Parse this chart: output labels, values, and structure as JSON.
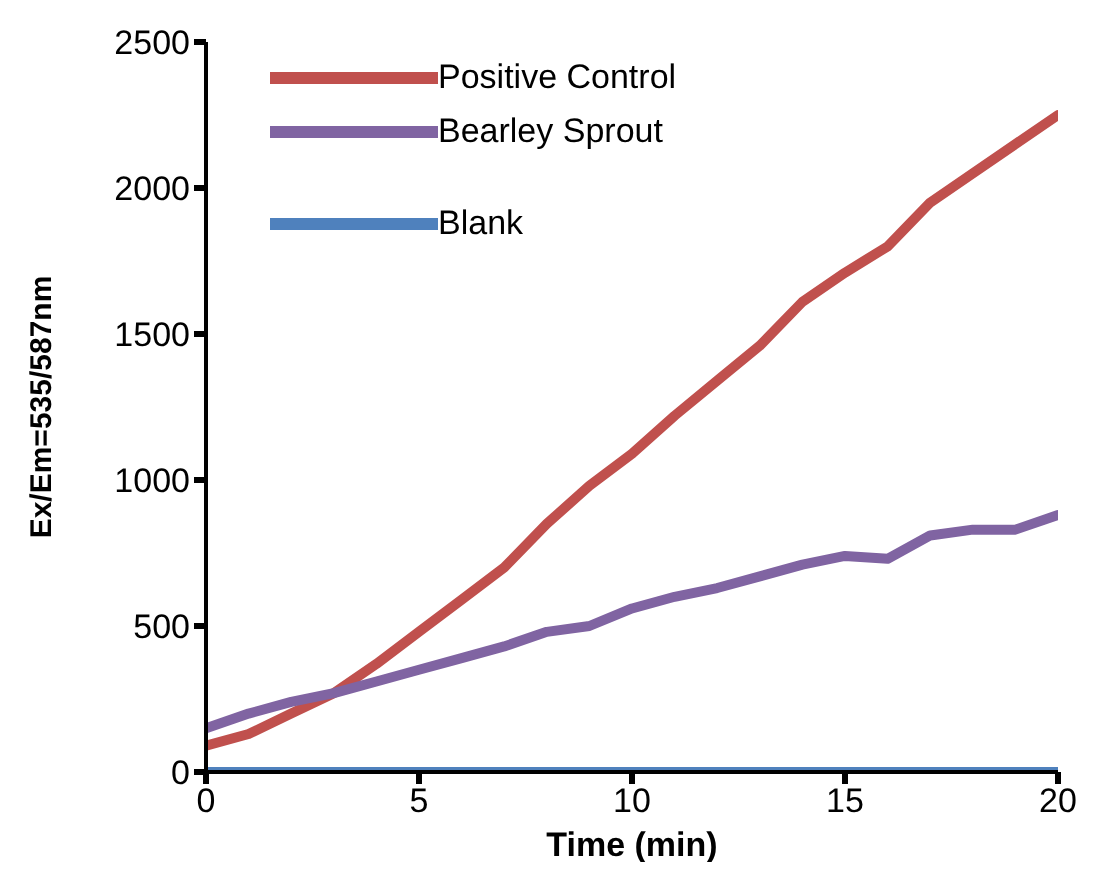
{
  "chart_data": {
    "type": "line",
    "xlabel": "Time (min)",
    "ylabel": "Ex/Em=535/587nm",
    "x": [
      0,
      1,
      2,
      3,
      4,
      5,
      6,
      7,
      8,
      9,
      10,
      11,
      12,
      13,
      14,
      15,
      16,
      17,
      18,
      19,
      20
    ],
    "series": [
      {
        "name": "Positive Control",
        "color": "#c0504d",
        "values": [
          90,
          130,
          200,
          270,
          370,
          480,
          590,
          700,
          850,
          980,
          1090,
          1220,
          1340,
          1460,
          1610,
          1710,
          1800,
          1950,
          2050,
          2150,
          2250
        ]
      },
      {
        "name": "Bearley Sprout",
        "color": "#8064a2",
        "values": [
          150,
          200,
          240,
          270,
          310,
          350,
          390,
          430,
          480,
          500,
          560,
          600,
          630,
          670,
          710,
          740,
          730,
          810,
          830,
          830,
          880
        ]
      },
      {
        "name": "Blank",
        "color": "#4f81bd",
        "values": [
          0,
          0,
          0,
          0,
          0,
          0,
          0,
          0,
          0,
          0,
          0,
          0,
          0,
          0,
          0,
          0,
          0,
          0,
          0,
          0,
          0
        ]
      }
    ],
    "xlim": [
      0,
      20
    ],
    "xticks": [
      0,
      5,
      10,
      15,
      20
    ],
    "ylim": [
      0,
      2500
    ],
    "yticks": [
      0,
      500,
      1000,
      1500,
      2000,
      2500
    ],
    "grid": false,
    "legend": "top left",
    "marker": "none",
    "line_style": "solid"
  }
}
